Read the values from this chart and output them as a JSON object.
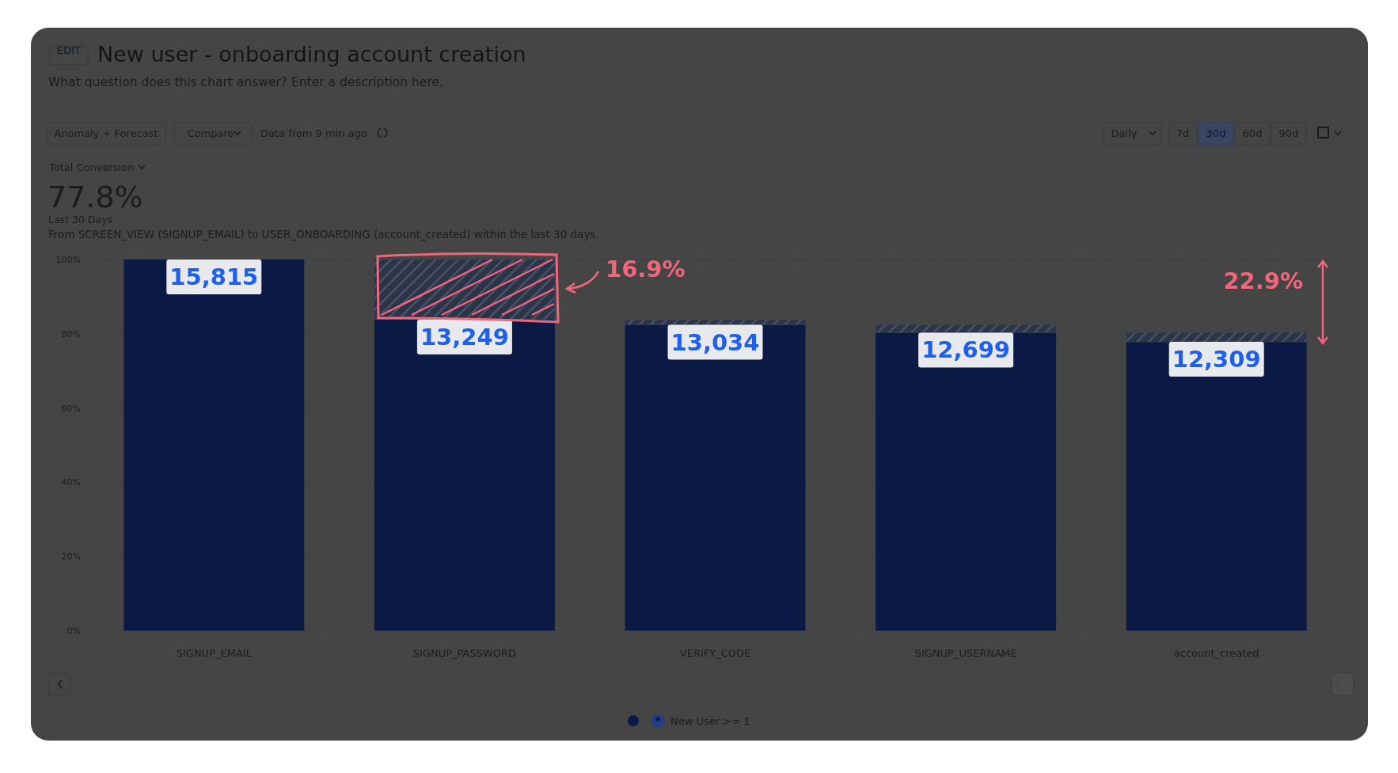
{
  "chart_data": {
    "type": "bar",
    "title": "New user - onboarding account creation",
    "subtitle": "What question does this chart answer? Enter a description here.",
    "categories": [
      "SIGNUP_EMAIL",
      "SIGNUP_PASSWORD",
      "VERIFY_CODE",
      "SIGNUP_USERNAME",
      "account_created"
    ],
    "stacked": true,
    "series": [
      {
        "name": "New User >= 1",
        "color": "#0b1a45",
        "values": [
          100,
          83.8,
          82.4,
          80.3,
          77.8
        ]
      },
      {
        "color": "#3a4258",
        "values": [
          0,
          16.2,
          1.4,
          2.1,
          2.5
        ]
      }
    ],
    "ylim": [
      0,
      100
    ],
    "yticks": [
      {
        "value": 0,
        "label": "0%"
      },
      {
        "value": 20,
        "label": "20%"
      },
      {
        "value": 40,
        "label": "40%"
      },
      {
        "value": 60,
        "label": "60%"
      },
      {
        "value": 80,
        "label": "80%"
      },
      {
        "value": 100,
        "label": "100%"
      }
    ],
    "grid": "y",
    "legend": "bottom",
    "annotations": [
      "EDIT",
      "Anomaly + Forecast",
      "Compare",
      "Data from 9 min ago",
      "Daily",
      "7d",
      "30d",
      "60d",
      "90d",
      "Total Conversion",
      "77.8%",
      "Last 30 Days",
      "From SCREEN_VIEW (SIGNUP_EMAIL) to USER_ONBOARDING (account_created) within the last 30 days.",
      "16.9%",
      "22.9%",
      {
        "text": "15,815",
        "x": "SIGNUP_EMAIL",
        "y": 100
      },
      {
        "text": "13,249",
        "x": "SIGNUP_PASSWORD",
        "y": 83.8
      },
      {
        "text": "13,034",
        "x": "VERIFY_CODE",
        "y": 82.4
      },
      {
        "text": "12,699",
        "x": "SIGNUP_USERNAME",
        "y": 80.3
      },
      {
        "text": "12,309",
        "x": "account_created",
        "y": 77.8
      }
    ]
  }
}
